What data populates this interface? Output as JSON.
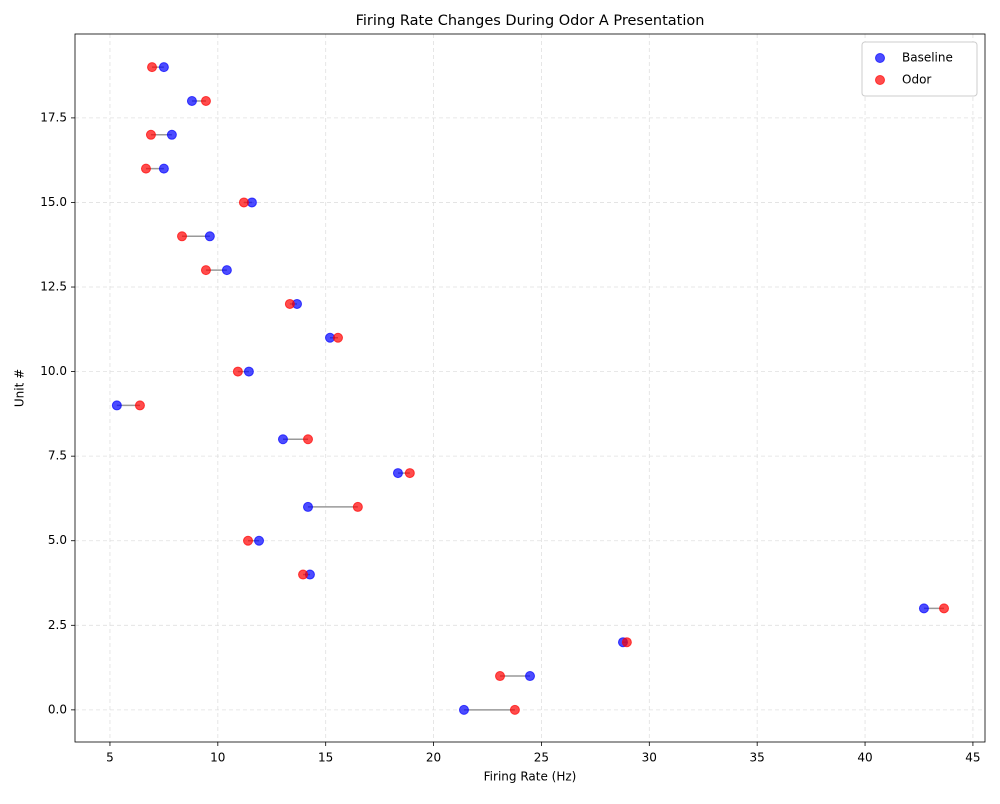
{
  "chart_data": {
    "type": "dumbbell",
    "title": "Firing Rate Changes During Odor A Presentation",
    "x_label": "Firing Rate (Hz)",
    "y_label": "Unit #",
    "y": [
      0,
      1,
      2,
      3,
      4,
      5,
      6,
      7,
      8,
      9,
      10,
      11,
      12,
      13,
      14,
      15,
      16,
      17,
      18,
      19
    ],
    "series": [
      {
        "name": "Baseline",
        "color": "#0000ff",
        "x": [
          21.41,
          24.47,
          28.78,
          42.73,
          14.27,
          11.91,
          14.18,
          18.35,
          13.02,
          5.32,
          11.44,
          15.2,
          13.67,
          10.42,
          9.63,
          11.58,
          7.5,
          7.87,
          8.8,
          7.5
        ]
      },
      {
        "name": "Odor",
        "color": "#ff0000",
        "x": [
          23.77,
          23.08,
          28.96,
          43.66,
          13.95,
          11.4,
          16.49,
          18.9,
          14.18,
          6.39,
          10.93,
          15.57,
          13.34,
          9.45,
          8.34,
          11.21,
          6.67,
          6.9,
          9.45,
          6.95
        ]
      }
    ],
    "connector_color": "#999999",
    "xlim": [
      3.38,
      45.56
    ],
    "ylim": [
      -0.95,
      19.98
    ],
    "xticks": [
      5,
      10,
      15,
      20,
      25,
      30,
      35,
      40,
      45
    ],
    "yticks": [
      {
        "value": 0,
        "label": "0.0"
      },
      2.5,
      {
        "value": 5,
        "label": "5.0"
      },
      7.5,
      {
        "value": 10,
        "label": "10.0"
      },
      12.5,
      {
        "value": 15,
        "label": "15.0"
      },
      17.5
    ],
    "grid": true,
    "legend": "upper-right"
  }
}
